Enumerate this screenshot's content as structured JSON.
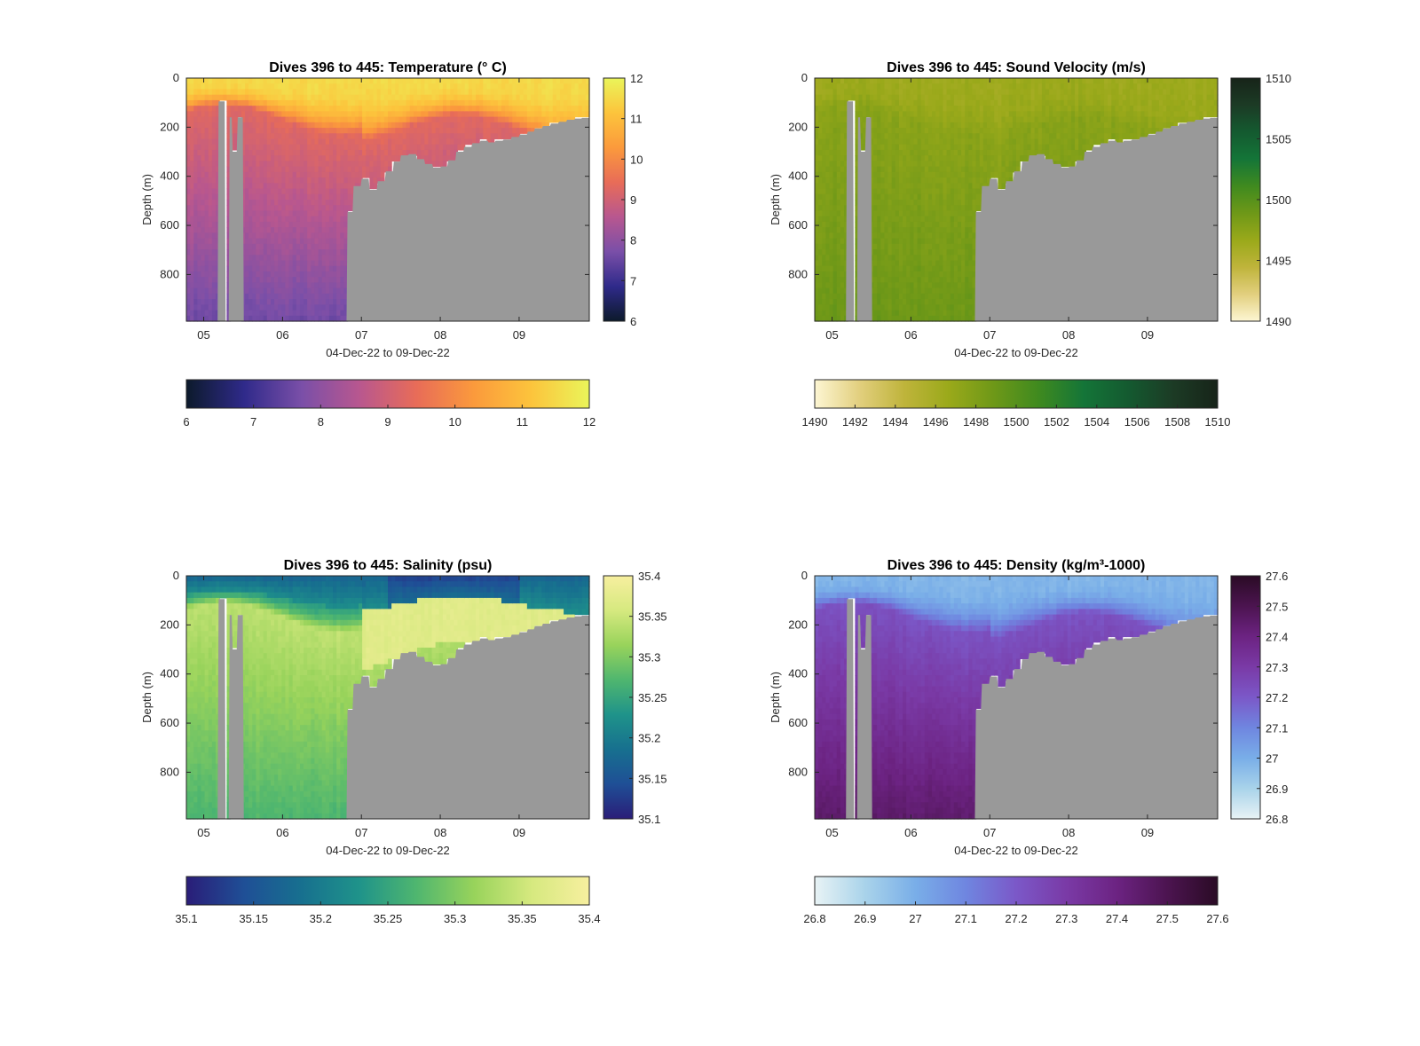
{
  "chart_data": [
    {
      "type": "heatmap",
      "title": "Dives 396 to 445: Temperature (° C)",
      "ylabel": "Depth (m)",
      "xlabel": "04-Dec-22 to 09-Dec-22",
      "xticklabels": [
        "05",
        "06",
        "07",
        "08",
        "09"
      ],
      "yticklabels": [
        "0",
        "200",
        "400",
        "600",
        "800"
      ],
      "ylim": [
        990,
        0
      ],
      "colorbar": {
        "range": [
          6,
          12
        ],
        "ticks": [
          "6",
          "7",
          "8",
          "9",
          "10",
          "11",
          "12"
        ],
        "colors": [
          "#0c1a2b",
          "#2f2a8a",
          "#7a4fa8",
          "#b8578f",
          "#e86c58",
          "#fb9a3c",
          "#fcc43c",
          "#eaf55a"
        ]
      },
      "profile_values": {
        "surface": 11.5,
        "mid_depth": 9.3,
        "deep": 7.6
      }
    },
    {
      "type": "heatmap",
      "title": "Dives 396 to 445: Sound Velocity (m/s)",
      "ylabel": "Depth (m)",
      "xlabel": "04-Dec-22 to 09-Dec-22",
      "xticklabels": [
        "05",
        "06",
        "07",
        "08",
        "09"
      ],
      "yticklabels": [
        "0",
        "200",
        "400",
        "600",
        "800"
      ],
      "ylim": [
        990,
        0
      ],
      "colorbar": {
        "range": [
          1490,
          1510
        ],
        "ticks": [
          "1490",
          "1492",
          "1494",
          "1496",
          "1498",
          "1500",
          "1502",
          "1504",
          "1506",
          "1508",
          "1510"
        ],
        "colors": [
          "#fdf6d3",
          "#e2cf7e",
          "#bfb43b",
          "#9aa91a",
          "#6e9818",
          "#3f8a1f",
          "#147538",
          "#145a30",
          "#1c3b25",
          "#172419"
        ]
      },
      "profile_values": {
        "surface": 1496.5,
        "mid_depth": 1497.5,
        "deep": 1499.0
      }
    },
    {
      "type": "heatmap",
      "title": "Dives 396 to 445: Salinity (psu)",
      "ylabel": "Depth (m)",
      "xlabel": "04-Dec-22 to 09-Dec-22",
      "xticklabels": [
        "05",
        "06",
        "07",
        "08",
        "09"
      ],
      "yticklabels": [
        "0",
        "200",
        "400",
        "600",
        "800"
      ],
      "ylim": [
        990,
        0
      ],
      "colorbar": {
        "range": [
          35.1,
          35.4
        ],
        "ticks": [
          "35.1",
          "35.15",
          "35.2",
          "35.25",
          "35.3",
          "35.35",
          "35.4"
        ],
        "colors": [
          "#2a1d78",
          "#1f4f96",
          "#17708f",
          "#1f938a",
          "#4fb66f",
          "#98d35b",
          "#d6e97f",
          "#f7ef9f"
        ]
      },
      "profile_values": {
        "surface": 35.22,
        "mid_depth": 35.34,
        "deep": 35.27
      }
    },
    {
      "type": "heatmap",
      "title": "Dives 396 to 445: Density (kg/m³-1000)",
      "ylabel": "Depth (m)",
      "xlabel": "04-Dec-22 to 09-Dec-22",
      "xticklabels": [
        "05",
        "06",
        "07",
        "08",
        "09"
      ],
      "yticklabels": [
        "0",
        "200",
        "400",
        "600",
        "800"
      ],
      "ylim": [
        990,
        0
      ],
      "colorbar": {
        "range": [
          26.8,
          27.6
        ],
        "ticks": [
          "26.8",
          "26.9",
          "27",
          "27.1",
          "27.2",
          "27.3",
          "27.4",
          "27.5",
          "27.6"
        ],
        "colors": [
          "#e8f3f5",
          "#a9d3ea",
          "#79aee8",
          "#6f86e0",
          "#7b58c8",
          "#7a3aa6",
          "#6c2382",
          "#4c1450",
          "#2a0b25"
        ]
      },
      "profile_values": {
        "surface": 26.98,
        "mid_depth": 27.22,
        "deep": 27.45
      }
    }
  ],
  "bottom_mask": {
    "color": "#999999",
    "description_days": [
      4.77,
      5.25,
      5.7,
      6.83,
      7.2,
      7.6,
      8.0,
      8.4,
      8.8,
      9.5,
      9.88
    ]
  }
}
